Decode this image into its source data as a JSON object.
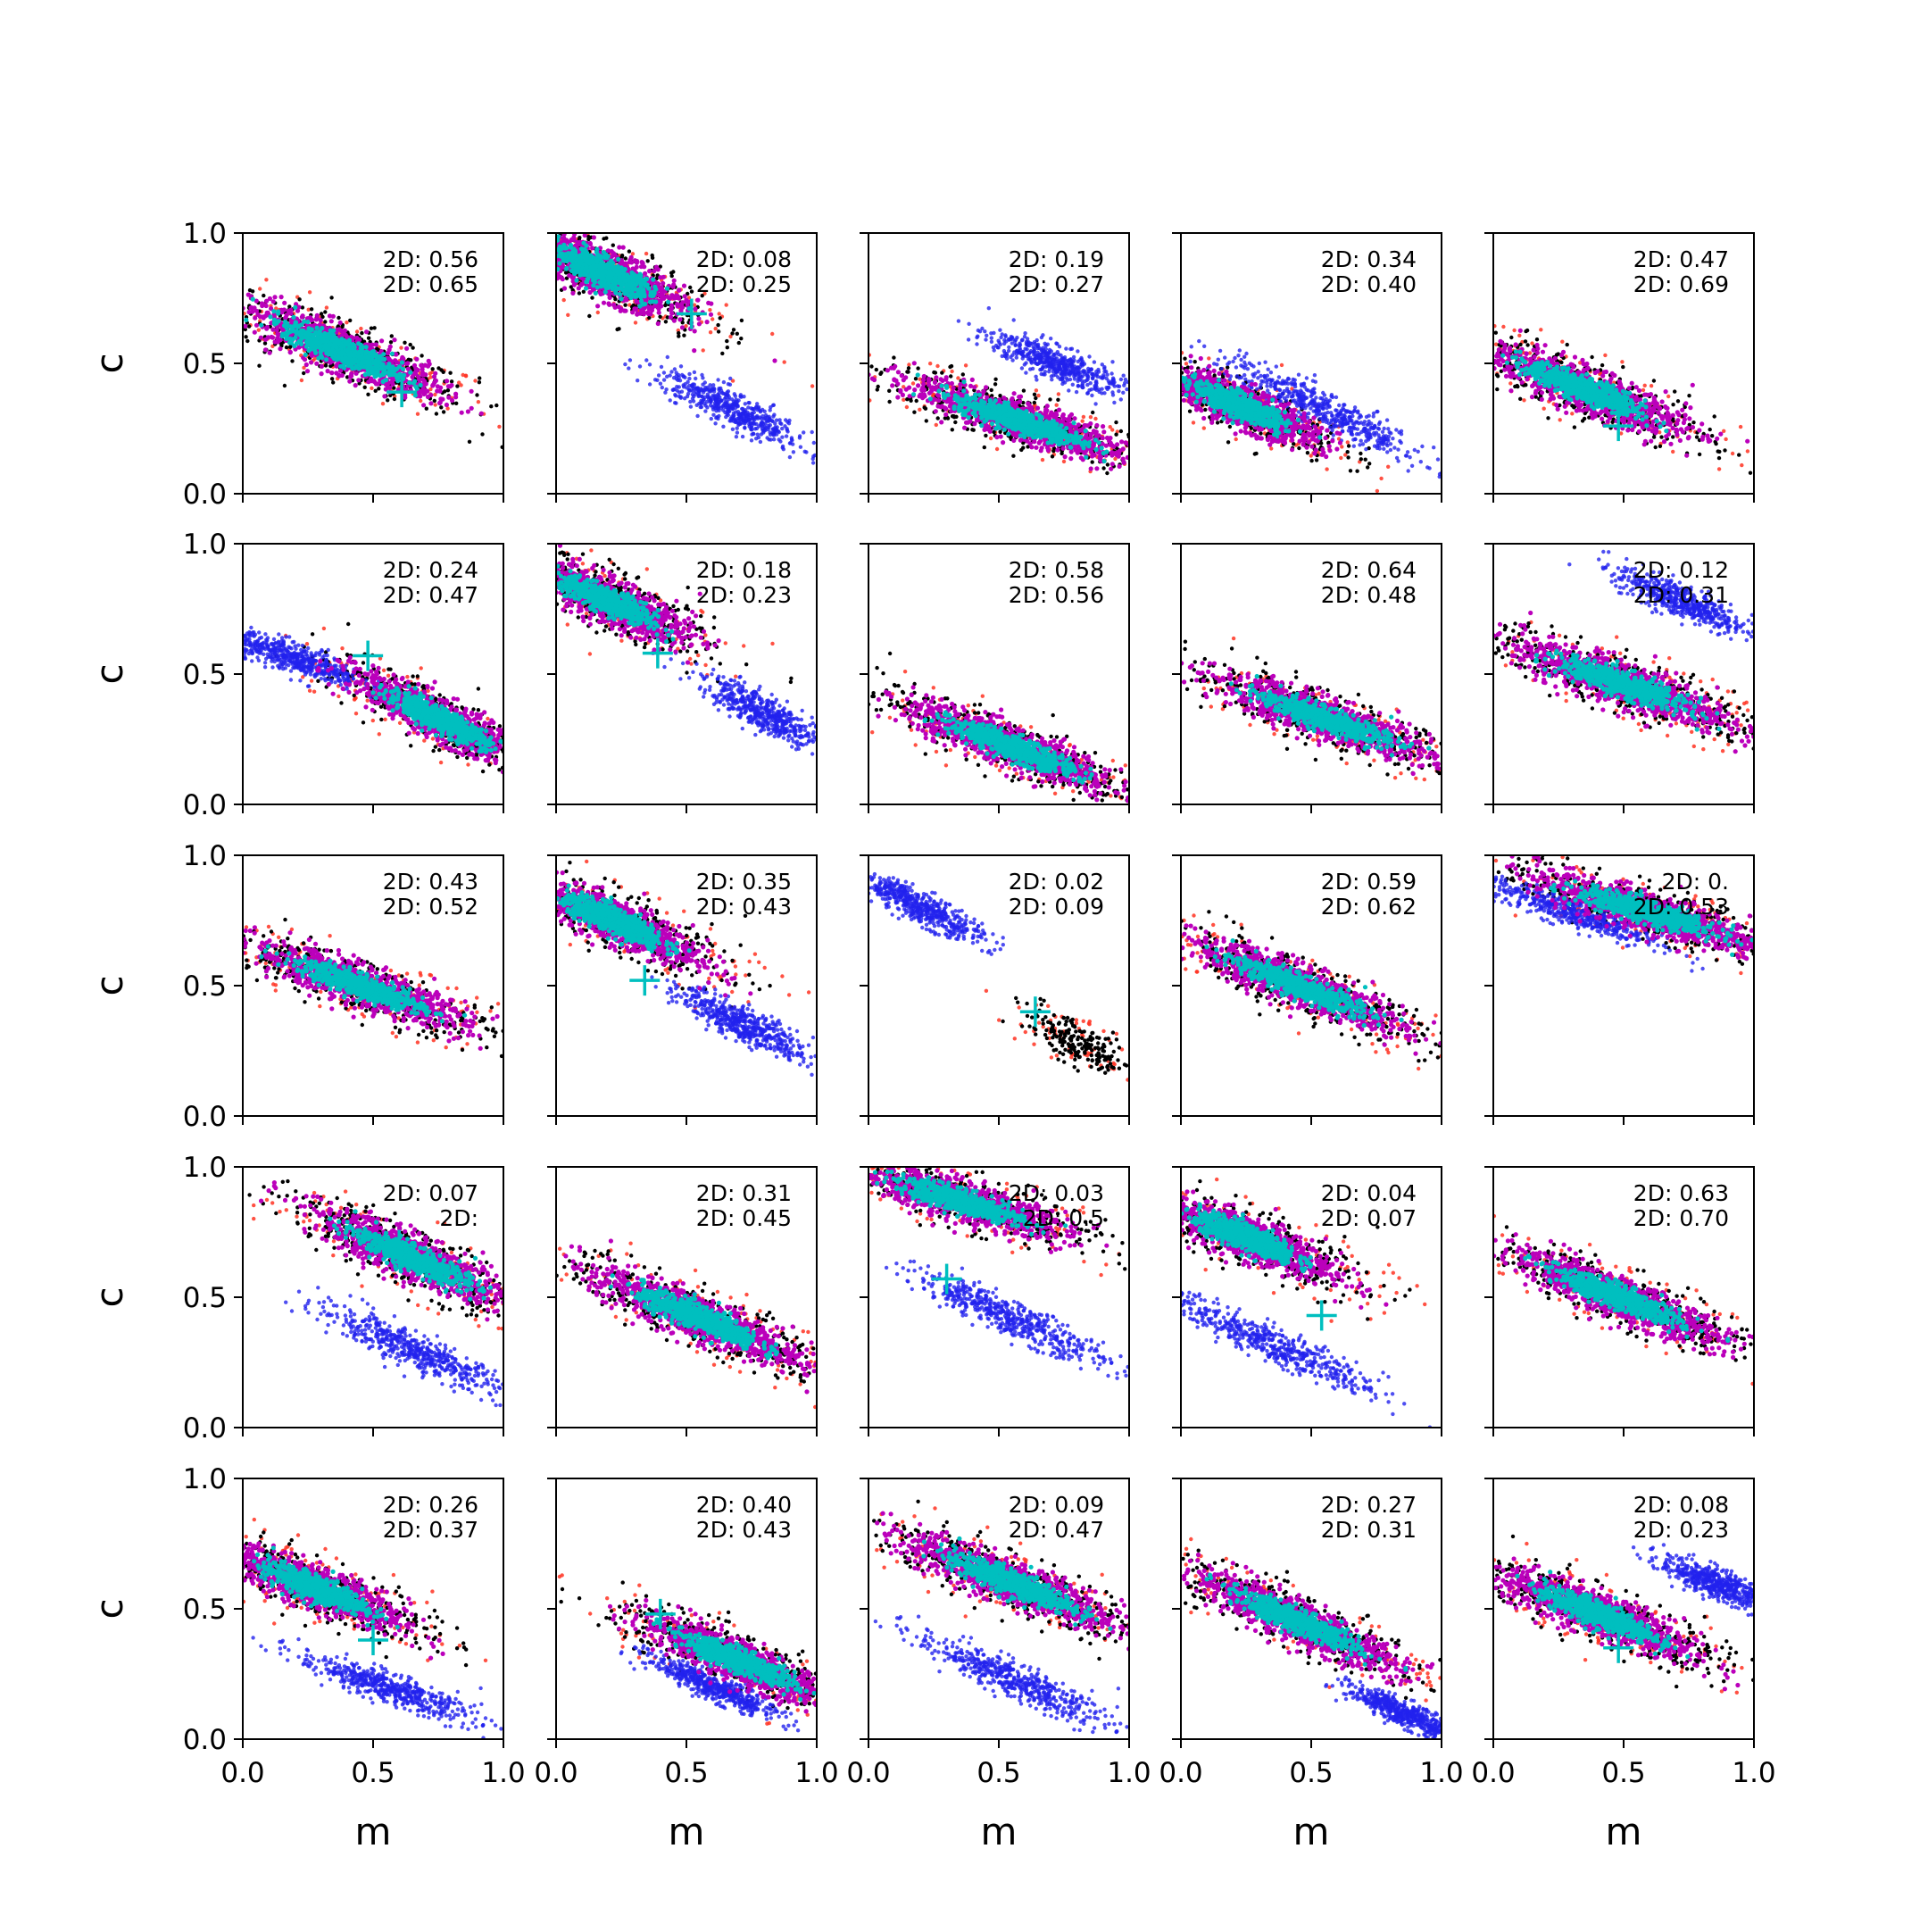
{
  "chart_data": {
    "type": "scatter",
    "grid": {
      "rows": 5,
      "cols": 5
    },
    "xlabel": "m",
    "ylabel": "c",
    "xlim": [
      0,
      1
    ],
    "ylim": [
      0,
      1
    ],
    "xticks": [
      "0.0",
      "0.5",
      "1.0"
    ],
    "yticks": [
      "0.0",
      "0.5",
      "1.0"
    ],
    "grid_lines": false,
    "series_colors": {
      "outer": "#ff3322",
      "dark": "#000000",
      "alt": "#2222ee",
      "mid": "#bb00bb",
      "core": "#00bfbf",
      "marker": "#00bfbf"
    },
    "panels": [
      {
        "ann1": "2D: 0.56",
        "ann2": "2D: 0.65",
        "main": {
          "cx": 0.38,
          "cy": 0.55,
          "slope": -0.42,
          "len": 0.55,
          "wid": 0.11
        },
        "alt": null,
        "cross": [
          0.61,
          0.39
        ]
      },
      {
        "ann1": "2D: 0.08",
        "ann2": "2D: 0.25",
        "main": {
          "cx": 0.18,
          "cy": 0.85,
          "slope": -0.45,
          "len": 0.48,
          "wid": 0.12
        },
        "alt": {
          "cx": 0.68,
          "cy": 0.32,
          "slope": -0.5,
          "len": 0.35,
          "wid": 0.07
        },
        "cross": [
          0.52,
          0.69
        ]
      },
      {
        "ann1": "2D: 0.19",
        "ann2": "2D: 0.27",
        "main": {
          "cx": 0.58,
          "cy": 0.28,
          "slope": -0.33,
          "len": 0.6,
          "wid": 0.1
        },
        "alt": {
          "cx": 0.72,
          "cy": 0.5,
          "slope": -0.4,
          "len": 0.3,
          "wid": 0.07
        },
        "cross": null
      },
      {
        "ann1": "2D: 0.34",
        "ann2": "2D: 0.40",
        "main": {
          "cx": 0.22,
          "cy": 0.34,
          "slope": -0.42,
          "len": 0.45,
          "wid": 0.1
        },
        "alt": {
          "cx": 0.55,
          "cy": 0.32,
          "slope": -0.5,
          "len": 0.5,
          "wid": 0.07
        },
        "cross": [
          0.37,
          0.27
        ]
      },
      {
        "ann1": "2D: 0.47",
        "ann2": "2D: 0.69",
        "main": {
          "cx": 0.35,
          "cy": 0.4,
          "slope": -0.4,
          "len": 0.55,
          "wid": 0.11
        },
        "alt": null,
        "cross": [
          0.48,
          0.26
        ]
      },
      {
        "ann1": "2D: 0.24",
        "ann2": "2D: 0.47",
        "main": {
          "cx": 0.75,
          "cy": 0.33,
          "slope": -0.5,
          "len": 0.5,
          "wid": 0.1
        },
        "alt": {
          "cx": 0.2,
          "cy": 0.56,
          "slope": -0.35,
          "len": 0.3,
          "wid": 0.06
        },
        "cross": [
          0.48,
          0.57
        ]
      },
      {
        "ann1": "2D: 0.18",
        "ann2": "2D: 0.23",
        "main": {
          "cx": 0.2,
          "cy": 0.78,
          "slope": -0.45,
          "len": 0.45,
          "wid": 0.11
        },
        "alt": {
          "cx": 0.8,
          "cy": 0.35,
          "slope": -0.55,
          "len": 0.3,
          "wid": 0.07
        },
        "cross": [
          0.39,
          0.58
        ]
      },
      {
        "ann1": "2D: 0.58",
        "ann2": "2D: 0.56",
        "main": {
          "cx": 0.55,
          "cy": 0.22,
          "slope": -0.38,
          "len": 0.6,
          "wid": 0.1
        },
        "alt": null,
        "cross": null
      },
      {
        "ann1": "2D: 0.64",
        "ann2": "2D: 0.48",
        "main": {
          "cx": 0.55,
          "cy": 0.33,
          "slope": -0.35,
          "len": 0.6,
          "wid": 0.1
        },
        "alt": null,
        "cross": null
      },
      {
        "ann1": "2D: 0.12",
        "ann2": "2D: 0.31",
        "main": {
          "cx": 0.5,
          "cy": 0.46,
          "slope": -0.35,
          "len": 0.6,
          "wid": 0.11
        },
        "alt": {
          "cx": 0.72,
          "cy": 0.78,
          "slope": -0.45,
          "len": 0.3,
          "wid": 0.07
        },
        "cross": null
      },
      {
        "ann1": "2D: 0.43",
        "ann2": "2D: 0.52",
        "main": {
          "cx": 0.45,
          "cy": 0.5,
          "slope": -0.35,
          "len": 0.6,
          "wid": 0.1
        },
        "alt": null,
        "cross": null
      },
      {
        "ann1": "2D: 0.35",
        "ann2": "2D: 0.43",
        "main": {
          "cx": 0.22,
          "cy": 0.75,
          "slope": -0.45,
          "len": 0.5,
          "wid": 0.11
        },
        "alt": {
          "cx": 0.72,
          "cy": 0.35,
          "slope": -0.5,
          "len": 0.3,
          "wid": 0.07
        },
        "cross": [
          0.34,
          0.52
        ]
      },
      {
        "ann1": "2D: 0.02",
        "ann2": "2D: 0.09",
        "main": {
          "cx": 0.8,
          "cy": 0.28,
          "slope": -0.6,
          "len": 0.25,
          "wid": 0.08,
          "sparse": true
        },
        "alt": {
          "cx": 0.2,
          "cy": 0.8,
          "slope": -0.5,
          "len": 0.3,
          "wid": 0.06
        },
        "cross": [
          0.64,
          0.4
        ]
      },
      {
        "ann1": "2D: 0.59",
        "ann2": "2D: 0.62",
        "main": {
          "cx": 0.45,
          "cy": 0.5,
          "slope": -0.4,
          "len": 0.6,
          "wid": 0.1
        },
        "alt": null,
        "cross": null
      },
      {
        "ann1": "2D: 0.",
        "ann2": "2D: 0.53",
        "main": {
          "cx": 0.6,
          "cy": 0.78,
          "slope": -0.3,
          "len": 0.65,
          "wid": 0.1
        },
        "alt": {
          "cx": 0.3,
          "cy": 0.78,
          "slope": -0.35,
          "len": 0.4,
          "wid": 0.06
        },
        "cross": null
      },
      {
        "ann1": "2D: 0.07",
        "ann2": "2D:",
        "main": {
          "cx": 0.65,
          "cy": 0.65,
          "slope": -0.45,
          "len": 0.55,
          "wid": 0.11
        },
        "alt": {
          "cx": 0.65,
          "cy": 0.3,
          "slope": -0.45,
          "len": 0.45,
          "wid": 0.07
        },
        "cross": [
          0.6,
          0.7
        ]
      },
      {
        "ann1": "2D: 0.31",
        "ann2": "2D: 0.45",
        "main": {
          "cx": 0.55,
          "cy": 0.42,
          "slope": -0.42,
          "len": 0.6,
          "wid": 0.11
        },
        "alt": null,
        "cross": null
      },
      {
        "ann1": "2D: 0.03",
        "ann2": "2D: 0.5",
        "main": {
          "cx": 0.35,
          "cy": 0.87,
          "slope": -0.3,
          "len": 0.6,
          "wid": 0.1
        },
        "alt": {
          "cx": 0.55,
          "cy": 0.42,
          "slope": -0.45,
          "len": 0.45,
          "wid": 0.07
        },
        "cross": [
          0.3,
          0.57
        ]
      },
      {
        "ann1": "2D: 0.04",
        "ann2": "2D: 0.07",
        "main": {
          "cx": 0.25,
          "cy": 0.73,
          "slope": -0.4,
          "len": 0.5,
          "wid": 0.11
        },
        "alt": {
          "cx": 0.35,
          "cy": 0.32,
          "slope": -0.45,
          "len": 0.5,
          "wid": 0.07
        },
        "cross": [
          0.54,
          0.43
        ]
      },
      {
        "ann1": "2D: 0.63",
        "ann2": "2D: 0.70",
        "main": {
          "cx": 0.48,
          "cy": 0.5,
          "slope": -0.4,
          "len": 0.6,
          "wid": 0.1
        },
        "alt": null,
        "cross": null
      },
      {
        "ann1": "2D: 0.26",
        "ann2": "2D: 0.37",
        "main": {
          "cx": 0.28,
          "cy": 0.58,
          "slope": -0.4,
          "len": 0.5,
          "wid": 0.11
        },
        "alt": {
          "cx": 0.55,
          "cy": 0.2,
          "slope": -0.35,
          "len": 0.4,
          "wid": 0.06
        },
        "cross": [
          0.5,
          0.38
        ]
      },
      {
        "ann1": "2D: 0.40",
        "ann2": "2D: 0.43",
        "main": {
          "cx": 0.7,
          "cy": 0.3,
          "slope": -0.42,
          "len": 0.55,
          "wid": 0.1
        },
        "alt": {
          "cx": 0.6,
          "cy": 0.2,
          "slope": -0.45,
          "len": 0.3,
          "wid": 0.05
        },
        "cross": [
          0.4,
          0.48
        ]
      },
      {
        "ann1": "2D: 0.09",
        "ann2": "2D: 0.47",
        "main": {
          "cx": 0.55,
          "cy": 0.6,
          "slope": -0.4,
          "len": 0.6,
          "wid": 0.11
        },
        "alt": {
          "cx": 0.55,
          "cy": 0.23,
          "slope": -0.45,
          "len": 0.45,
          "wid": 0.07
        },
        "cross": null
      },
      {
        "ann1": "2D: 0.27",
        "ann2": "2D: 0.31",
        "main": {
          "cx": 0.45,
          "cy": 0.45,
          "slope": -0.45,
          "len": 0.6,
          "wid": 0.1
        },
        "alt": {
          "cx": 0.85,
          "cy": 0.1,
          "slope": -0.45,
          "len": 0.25,
          "wid": 0.05
        },
        "cross": null
      },
      {
        "ann1": "2D: 0.08",
        "ann2": "2D: 0.23",
        "main": {
          "cx": 0.4,
          "cy": 0.48,
          "slope": -0.4,
          "len": 0.55,
          "wid": 0.11
        },
        "alt": {
          "cx": 0.85,
          "cy": 0.6,
          "slope": -0.4,
          "len": 0.25,
          "wid": 0.06
        },
        "cross": [
          0.48,
          0.35
        ]
      }
    ]
  }
}
